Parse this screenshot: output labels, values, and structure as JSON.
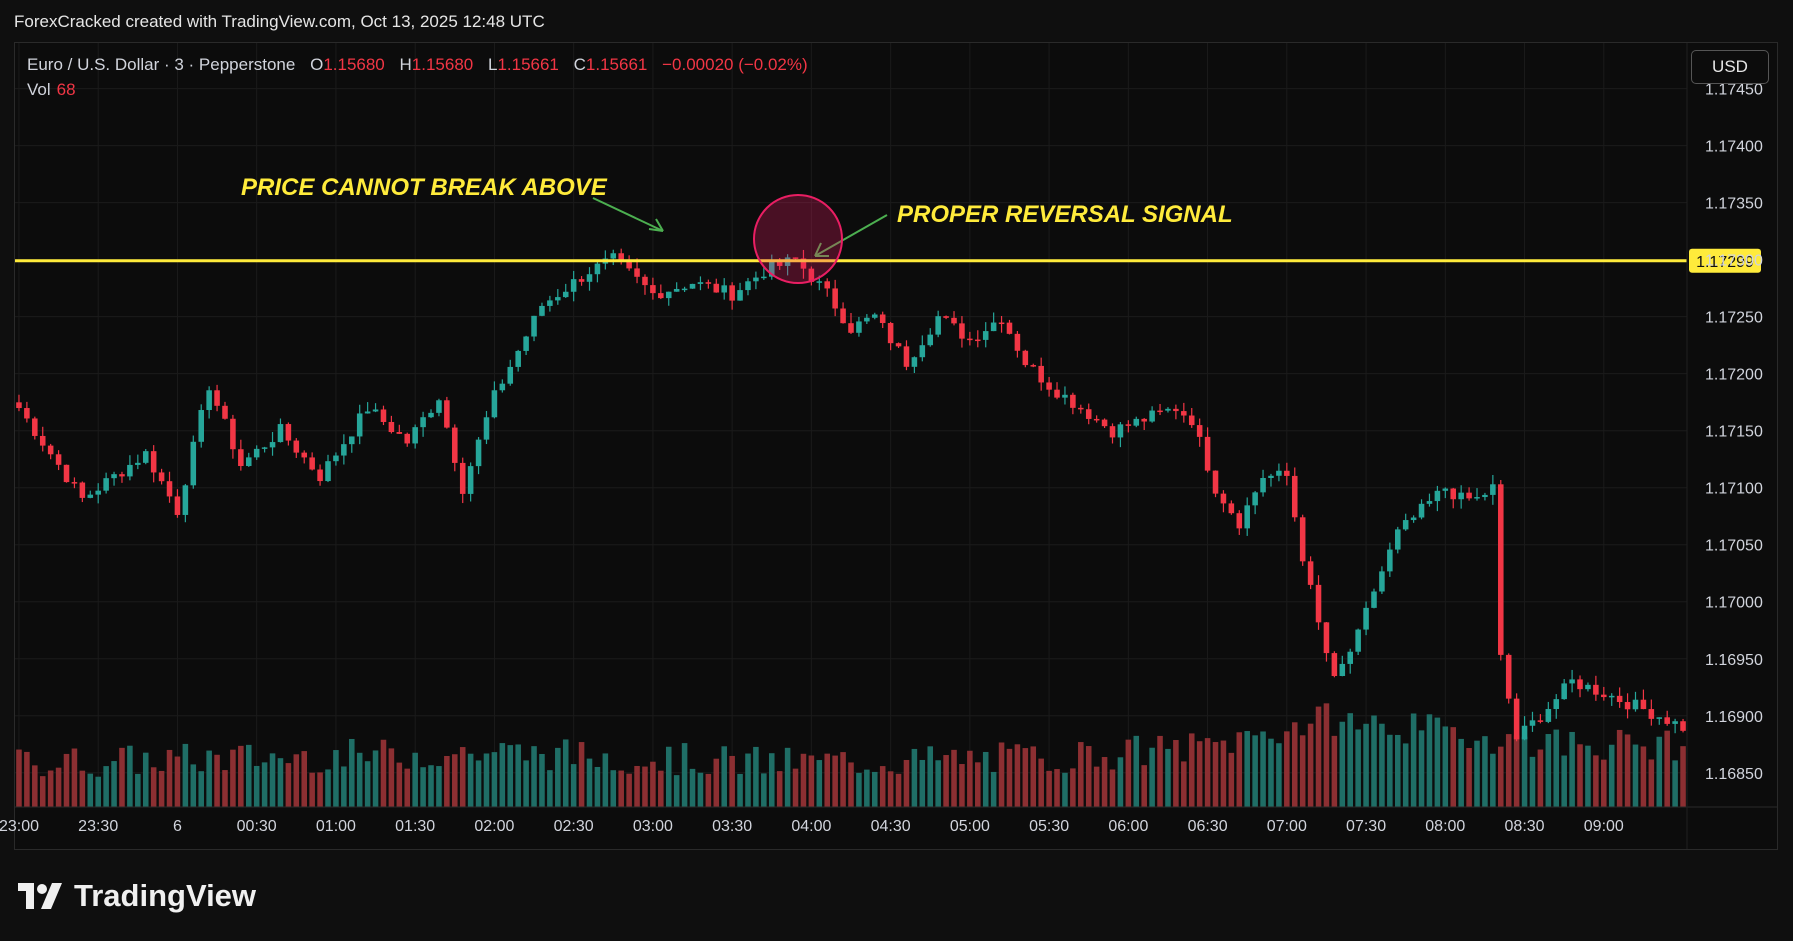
{
  "header": {
    "caption": "ForexCracked created with TradingView.com, Oct 13, 2025 12:48 UTC"
  },
  "legend": {
    "symbol": "Euro / U.S. Dollar · 3 · Pepperstone",
    "open_label": "O",
    "open": "1.15680",
    "high_label": "H",
    "high": "1.15680",
    "low_label": "L",
    "low": "1.15661",
    "close_label": "C",
    "close": "1.15661",
    "change": "−0.00020 (−0.02%)",
    "vol_label": "Vol",
    "vol": "68"
  },
  "toolbar": {
    "currency": "USD"
  },
  "footer": {
    "brand": "TradingView"
  },
  "colors": {
    "up": "#26a69a",
    "down": "#f23645",
    "vol_up": "#1f6e66",
    "vol_down": "#8c2f32",
    "level": "#ffeb3b",
    "annotation": "#ffeb3b",
    "arrow": "#4caf50"
  },
  "chart_data": {
    "type": "candlestick",
    "ylim": [
      1.1682,
      1.1749
    ],
    "price_ticks": [
      "1.17450",
      "1.17400",
      "1.17350",
      "1.17300",
      "1.17250",
      "1.17200",
      "1.17150",
      "1.17100",
      "1.17050",
      "1.17000",
      "1.16950",
      "1.16900",
      "1.16850"
    ],
    "time_labels": [
      "23:00",
      "23:30",
      "6",
      "00:30",
      "01:00",
      "01:30",
      "02:00",
      "02:30",
      "03:00",
      "03:30",
      "04:00",
      "04:30",
      "05:00",
      "05:30",
      "06:00",
      "06:30",
      "07:00",
      "07:30",
      "08:00",
      "08:30",
      "09:00"
    ],
    "horizontal_level": {
      "value": 1.17299,
      "label": "1.17299"
    },
    "annotations": [
      "PRICE CANNOT BREAK ABOVE",
      "PROPER REVERSAL SIGNAL"
    ],
    "close_path": [
      [
        0,
        1.1717
      ],
      [
        8,
        1.1709
      ],
      [
        16,
        1.1713
      ],
      [
        20,
        1.1708
      ],
      [
        24,
        1.1719
      ],
      [
        28,
        1.1712
      ],
      [
        33,
        1.1715
      ],
      [
        38,
        1.1711
      ],
      [
        44,
        1.1717
      ],
      [
        49,
        1.1714
      ],
      [
        53,
        1.1718
      ],
      [
        56,
        1.171
      ],
      [
        60,
        1.1718
      ],
      [
        66,
        1.1726
      ],
      [
        72,
        1.1729
      ],
      [
        75,
        1.173
      ],
      [
        80,
        1.1727
      ],
      [
        85,
        1.1728
      ],
      [
        90,
        1.1727
      ],
      [
        94,
        1.1729
      ],
      [
        98,
        1.173
      ],
      [
        102,
        1.1727
      ],
      [
        105,
        1.1724
      ],
      [
        108,
        1.1725
      ],
      [
        112,
        1.1721
      ],
      [
        116,
        1.1725
      ],
      [
        120,
        1.1723
      ],
      [
        124,
        1.1725
      ],
      [
        127,
        1.1721
      ],
      [
        130,
        1.1719
      ],
      [
        134,
        1.1717
      ],
      [
        138,
        1.1715
      ],
      [
        142,
        1.1716
      ],
      [
        146,
        1.1717
      ],
      [
        148,
        1.1716
      ],
      [
        151,
        1.171
      ],
      [
        154,
        1.1707
      ],
      [
        157,
        1.1711
      ],
      [
        160,
        1.1711
      ],
      [
        162,
        1.1704
      ],
      [
        164,
        1.1698
      ],
      [
        166,
        1.1693
      ],
      [
        169,
        1.1697
      ],
      [
        171,
        1.1701
      ],
      [
        174,
        1.1706
      ],
      [
        177,
        1.1708
      ],
      [
        180,
        1.171
      ],
      [
        182,
        1.1709
      ],
      [
        184,
        1.1709
      ],
      [
        186,
        1.171
      ],
      [
        187,
        1.1695
      ],
      [
        189,
        1.1688
      ],
      [
        192,
        1.169
      ],
      [
        196,
        1.1693
      ],
      [
        200,
        1.1692
      ],
      [
        207,
        1.169
      ],
      [
        210,
        1.1689
      ]
    ],
    "volume_profile": [
      [
        0,
        25
      ],
      [
        60,
        35
      ],
      [
        95,
        25
      ],
      [
        130,
        30
      ],
      [
        150,
        40
      ],
      [
        165,
        65
      ],
      [
        190,
        45
      ],
      [
        210,
        40
      ]
    ]
  }
}
